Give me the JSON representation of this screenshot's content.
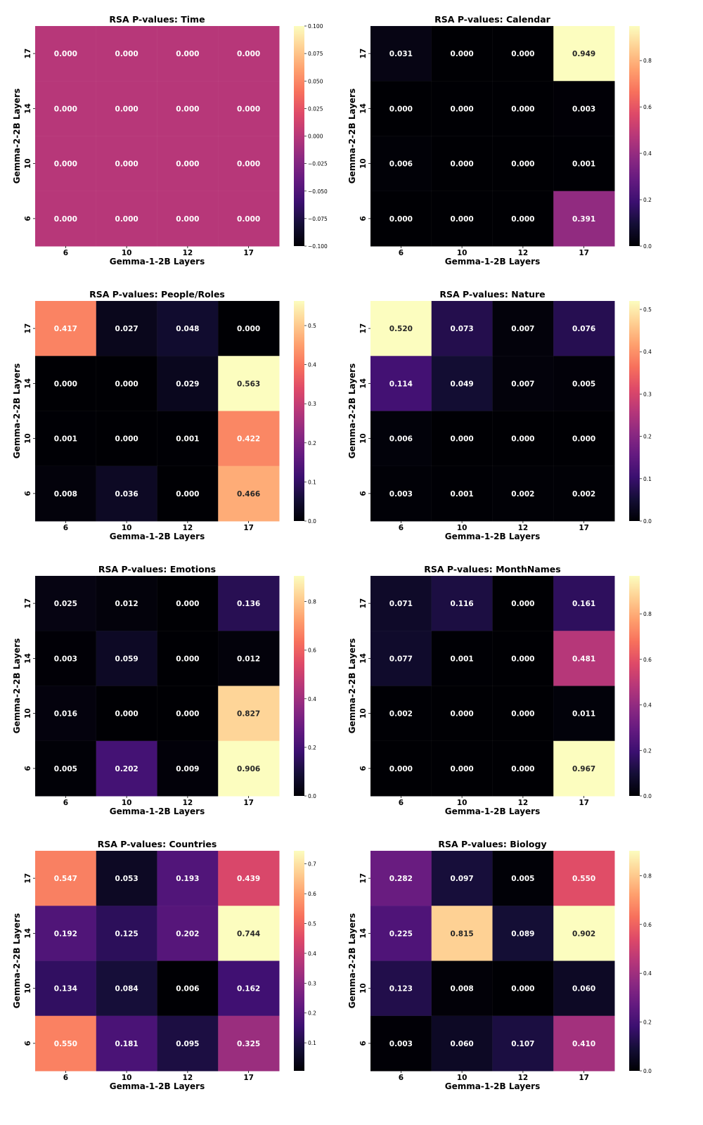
{
  "chart_data": [
    {
      "type": "heatmap",
      "title": "RSA P-values: Time",
      "xlabel": "Gemma-1-2B Layers",
      "ylabel": "Gemma-2-2B Layers",
      "x_categories": [
        "6",
        "10",
        "12",
        "17"
      ],
      "y_categories": [
        "17",
        "14",
        "10",
        "6"
      ],
      "values": [
        [
          0.0,
          0.0,
          0.0,
          0.0
        ],
        [
          0.0,
          0.0,
          0.0,
          0.0
        ],
        [
          0.0,
          0.0,
          0.0,
          0.0
        ],
        [
          0.0,
          0.0,
          0.0,
          0.0
        ]
      ],
      "colormap": "magma",
      "colorbar": {
        "range": [
          -0.1,
          0.1
        ],
        "ticks": [
          0.1,
          0.075,
          0.05,
          0.025,
          0.0,
          -0.025,
          -0.05,
          -0.075,
          -0.1
        ],
        "tick_labels": [
          "0.100",
          "0.075",
          "0.050",
          "0.025",
          "0.000",
          "−0.025",
          "−0.050",
          "−0.075",
          "−0.100"
        ]
      }
    },
    {
      "type": "heatmap",
      "title": "RSA P-values: Calendar",
      "xlabel": "Gemma-1-2B Layers",
      "ylabel": "Gemma-2-2B Layers",
      "x_categories": [
        "6",
        "10",
        "12",
        "17"
      ],
      "y_categories": [
        "17",
        "14",
        "10",
        "6"
      ],
      "values": [
        [
          0.031,
          0.0,
          0.0,
          0.949
        ],
        [
          0.0,
          0.0,
          0.0,
          0.003
        ],
        [
          0.006,
          0.0,
          0.0,
          0.001
        ],
        [
          0.0,
          0.0,
          0.0,
          0.391
        ]
      ],
      "colormap": "magma",
      "colorbar": {
        "range": [
          0.0,
          0.949
        ],
        "ticks": [
          0.8,
          0.6,
          0.4,
          0.2,
          0.0
        ],
        "tick_labels": [
          "0.8",
          "0.6",
          "0.4",
          "0.2",
          "0.0"
        ]
      }
    },
    {
      "type": "heatmap",
      "title": "RSA P-values: People/Roles",
      "xlabel": "Gemma-1-2B Layers",
      "ylabel": "Gemma-2-2B Layers",
      "x_categories": [
        "6",
        "10",
        "12",
        "17"
      ],
      "y_categories": [
        "17",
        "14",
        "10",
        "6"
      ],
      "values": [
        [
          0.417,
          0.027,
          0.048,
          0.0
        ],
        [
          0.0,
          0.0,
          0.029,
          0.563
        ],
        [
          0.001,
          0.0,
          0.001,
          0.422
        ],
        [
          0.008,
          0.036,
          0.0,
          0.466
        ]
      ],
      "colormap": "magma",
      "colorbar": {
        "range": [
          0.0,
          0.563
        ],
        "ticks": [
          0.5,
          0.4,
          0.3,
          0.2,
          0.1,
          0.0
        ],
        "tick_labels": [
          "0.5",
          "0.4",
          "0.3",
          "0.2",
          "0.1",
          "0.0"
        ]
      }
    },
    {
      "type": "heatmap",
      "title": "RSA P-values: Nature",
      "xlabel": "Gemma-1-2B Layers",
      "ylabel": "Gemma-2-2B Layers",
      "x_categories": [
        "6",
        "10",
        "12",
        "17"
      ],
      "y_categories": [
        "17",
        "14",
        "10",
        "6"
      ],
      "values": [
        [
          0.52,
          0.073,
          0.007,
          0.076
        ],
        [
          0.114,
          0.049,
          0.007,
          0.005
        ],
        [
          0.006,
          0.0,
          0.0,
          0.0
        ],
        [
          0.003,
          0.001,
          0.002,
          0.002
        ]
      ],
      "colormap": "magma",
      "colorbar": {
        "range": [
          0.0,
          0.52
        ],
        "ticks": [
          0.5,
          0.4,
          0.3,
          0.2,
          0.1,
          0.0
        ],
        "tick_labels": [
          "0.5",
          "0.4",
          "0.3",
          "0.2",
          "0.1",
          "0.0"
        ]
      }
    },
    {
      "type": "heatmap",
      "title": "RSA P-values: Emotions",
      "xlabel": "Gemma-1-2B Layers",
      "ylabel": "Gemma-2-2B Layers",
      "x_categories": [
        "6",
        "10",
        "12",
        "17"
      ],
      "y_categories": [
        "17",
        "14",
        "10",
        "6"
      ],
      "values": [
        [
          0.025,
          0.012,
          0.0,
          0.136
        ],
        [
          0.003,
          0.059,
          0.0,
          0.012
        ],
        [
          0.016,
          0.0,
          0.0,
          0.827
        ],
        [
          0.005,
          0.202,
          0.009,
          0.906
        ]
      ],
      "colormap": "magma",
      "colorbar": {
        "range": [
          0.0,
          0.906
        ],
        "ticks": [
          0.8,
          0.6,
          0.4,
          0.2,
          0.0
        ],
        "tick_labels": [
          "0.8",
          "0.6",
          "0.4",
          "0.2",
          "0.0"
        ]
      }
    },
    {
      "type": "heatmap",
      "title": "RSA P-values: MonthNames",
      "xlabel": "Gemma-1-2B Layers",
      "ylabel": "Gemma-2-2B Layers",
      "x_categories": [
        "6",
        "10",
        "12",
        "17"
      ],
      "y_categories": [
        "17",
        "14",
        "10",
        "6"
      ],
      "values": [
        [
          0.071,
          0.116,
          0.0,
          0.161
        ],
        [
          0.077,
          0.001,
          0.0,
          0.481
        ],
        [
          0.002,
          0.0,
          0.0,
          0.011
        ],
        [
          0.0,
          0.0,
          0.0,
          0.967
        ]
      ],
      "colormap": "magma",
      "colorbar": {
        "range": [
          0.0,
          0.967
        ],
        "ticks": [
          0.8,
          0.6,
          0.4,
          0.2,
          0.0
        ],
        "tick_labels": [
          "0.8",
          "0.6",
          "0.4",
          "0.2",
          "0.0"
        ]
      }
    },
    {
      "type": "heatmap",
      "title": "RSA P-values: Countries",
      "xlabel": "Gemma-1-2B Layers",
      "ylabel": "Gemma-2-2B Layers",
      "x_categories": [
        "6",
        "10",
        "12",
        "17"
      ],
      "y_categories": [
        "17",
        "14",
        "10",
        "6"
      ],
      "values": [
        [
          0.547,
          0.053,
          0.193,
          0.439
        ],
        [
          0.192,
          0.125,
          0.202,
          0.744
        ],
        [
          0.134,
          0.084,
          0.006,
          0.162
        ],
        [
          0.55,
          0.181,
          0.095,
          0.325
        ]
      ],
      "colormap": "magma",
      "colorbar": {
        "range": [
          0.006,
          0.744
        ],
        "ticks": [
          0.7,
          0.6,
          0.5,
          0.4,
          0.3,
          0.2,
          0.1
        ],
        "tick_labels": [
          "0.7",
          "0.6",
          "0.5",
          "0.4",
          "0.3",
          "0.2",
          "0.1"
        ]
      }
    },
    {
      "type": "heatmap",
      "title": "RSA P-values: Biology",
      "xlabel": "Gemma-1-2B Layers",
      "ylabel": "Gemma-2-2B Layers",
      "x_categories": [
        "6",
        "10",
        "12",
        "17"
      ],
      "y_categories": [
        "17",
        "14",
        "10",
        "6"
      ],
      "values": [
        [
          0.282,
          0.097,
          0.005,
          0.55
        ],
        [
          0.225,
          0.815,
          0.089,
          0.902
        ],
        [
          0.123,
          0.008,
          0.0,
          0.06
        ],
        [
          0.003,
          0.06,
          0.107,
          0.41
        ]
      ],
      "colormap": "magma",
      "colorbar": {
        "range": [
          0.0,
          0.902
        ],
        "ticks": [
          0.8,
          0.6,
          0.4,
          0.2,
          0.0
        ],
        "tick_labels": [
          "0.8",
          "0.6",
          "0.4",
          "0.2",
          "0.0"
        ]
      }
    }
  ]
}
